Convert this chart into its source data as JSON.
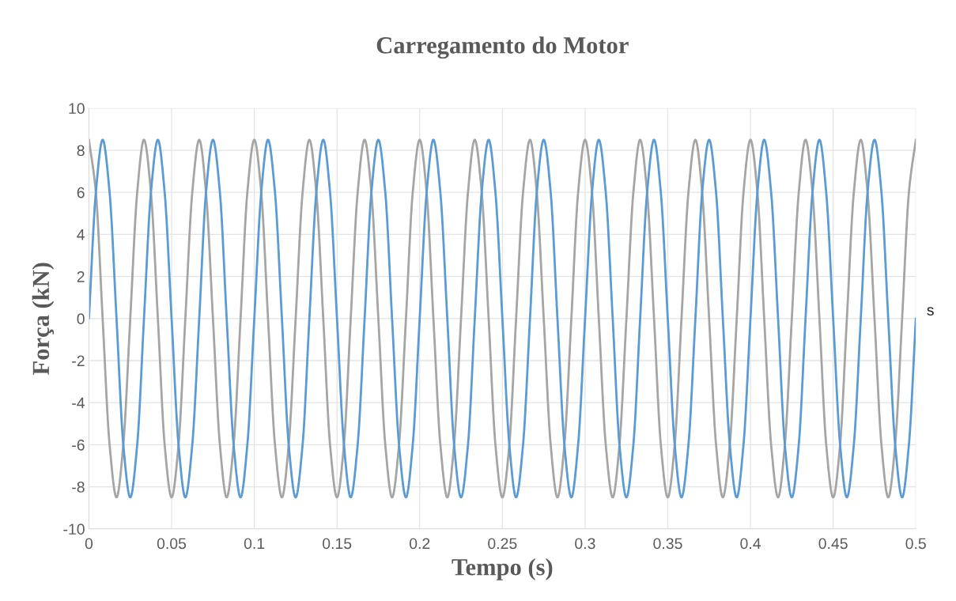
{
  "chart_data": {
    "type": "line",
    "title": "Carregamento do Motor",
    "xlabel": "Tempo (s)",
    "ylabel": "Força (kN)",
    "annotations": [
      "s"
    ],
    "x": [
      0,
      0.0042,
      0.0083,
      0.0125,
      0.0167,
      0.0208,
      0.025,
      0.0292,
      0.0333,
      0.0375,
      0.0417,
      0.0458,
      0.05,
      0.0542,
      0.0583,
      0.0625,
      0.0667,
      0.0708,
      0.075,
      0.0792,
      0.0833,
      0.0875,
      0.0917,
      0.0958,
      0.1,
      0.1042,
      0.1083,
      0.1125,
      0.1167,
      0.1208,
      0.125,
      0.1292,
      0.1333,
      0.1375,
      0.1417,
      0.1458,
      0.15,
      0.1542,
      0.1583,
      0.1625,
      0.1667,
      0.1708,
      0.175,
      0.1792,
      0.1833,
      0.1875,
      0.1917,
      0.1958,
      0.2,
      0.2042,
      0.2083,
      0.2125,
      0.2167,
      0.2208,
      0.225,
      0.2292,
      0.2333,
      0.2375,
      0.2417,
      0.2458,
      0.25,
      0.2542,
      0.2583,
      0.2625,
      0.2667,
      0.2708,
      0.275,
      0.2792,
      0.2833,
      0.2875,
      0.2917,
      0.2958,
      0.3,
      0.3042,
      0.3083,
      0.3125,
      0.3167,
      0.3208,
      0.325,
      0.3292,
      0.3333,
      0.3375,
      0.3417,
      0.3458,
      0.35,
      0.3542,
      0.3583,
      0.3625,
      0.3667,
      0.3708,
      0.375,
      0.3792,
      0.3833,
      0.3875,
      0.3917,
      0.3958,
      0.4,
      0.4042,
      0.4083,
      0.4125,
      0.4167,
      0.4208,
      0.425,
      0.4292,
      0.4333,
      0.4375,
      0.4417,
      0.4458,
      0.45,
      0.4542,
      0.4583,
      0.4625,
      0.4667,
      0.4708,
      0.475,
      0.4792,
      0.4833,
      0.4875,
      0.4917,
      0.4958,
      0.5
    ],
    "series": [
      {
        "color": "#a5a5a5",
        "values": [
          8.5,
          6,
          0,
          -6,
          -8.5,
          -6,
          0,
          6,
          8.5,
          6,
          0,
          -6,
          -8.5,
          -6,
          0,
          6,
          8.5,
          6,
          0,
          -6,
          -8.5,
          -6,
          0,
          6,
          8.5,
          6,
          0,
          -6,
          -8.5,
          -6,
          0,
          6,
          8.5,
          6,
          0,
          -6,
          -8.5,
          -6,
          0,
          6,
          8.5,
          6,
          0,
          -6,
          -8.5,
          -6,
          0,
          6,
          8.5,
          6,
          0,
          -6,
          -8.5,
          -6,
          0,
          6,
          8.5,
          6,
          0,
          -6,
          -8.5,
          -6,
          0,
          6,
          8.5,
          6,
          0,
          -6,
          -8.5,
          -6,
          0,
          6,
          8.5,
          6,
          0,
          -6,
          -8.5,
          -6,
          0,
          6,
          8.5,
          6,
          0,
          -6,
          -8.5,
          -6,
          0,
          6,
          8.5,
          6,
          0,
          -6,
          -8.5,
          -6,
          0,
          6,
          8.5,
          6,
          0,
          -6,
          -8.5,
          -6,
          0,
          6,
          8.5,
          6,
          0,
          -6,
          -8.5,
          -6,
          0,
          6,
          8.5,
          6,
          0,
          -6,
          -8.5,
          -6,
          0,
          6,
          8.5
        ]
      },
      {
        "color": "#5b9bd5",
        "values": [
          0,
          6,
          8.5,
          6,
          0,
          -6,
          -8.5,
          -6,
          0,
          6,
          8.5,
          6,
          0,
          -6,
          -8.5,
          -6,
          0,
          6,
          8.5,
          6,
          0,
          -6,
          -8.5,
          -6,
          0,
          6,
          8.5,
          6,
          0,
          -6,
          -8.5,
          -6,
          0,
          6,
          8.5,
          6,
          0,
          -6,
          -8.5,
          -6,
          0,
          6,
          8.5,
          6,
          0,
          -6,
          -8.5,
          -6,
          0,
          6,
          8.5,
          6,
          0,
          -6,
          -8.5,
          -6,
          0,
          6,
          8.5,
          6,
          0,
          -6,
          -8.5,
          -6,
          0,
          6,
          8.5,
          6,
          0,
          -6,
          -8.5,
          -6,
          0,
          6,
          8.5,
          6,
          0,
          -6,
          -8.5,
          -6,
          0,
          6,
          8.5,
          6,
          0,
          -6,
          -8.5,
          -6,
          0,
          6,
          8.5,
          6,
          0,
          -6,
          -8.5,
          -6,
          0,
          6,
          8.5,
          6,
          0,
          -6,
          -8.5,
          -6,
          0,
          6,
          8.5,
          6,
          0,
          -6,
          -8.5,
          -6,
          0,
          6,
          8.5,
          6,
          0,
          -6,
          -8.5,
          -6,
          0
        ]
      }
    ],
    "xlim": [
      0,
      0.5
    ],
    "xticks": [
      0,
      0.05,
      0.1,
      0.15,
      0.2,
      0.25,
      0.3,
      0.35,
      0.4,
      0.45,
      0.5
    ],
    "ylim": [
      -10,
      10
    ],
    "yticks": [
      -10,
      -8,
      -6,
      -4,
      -2,
      0,
      2,
      4,
      6,
      8,
      10
    ],
    "grid": true,
    "legend": false,
    "marker": "none",
    "line_style": "solid"
  }
}
